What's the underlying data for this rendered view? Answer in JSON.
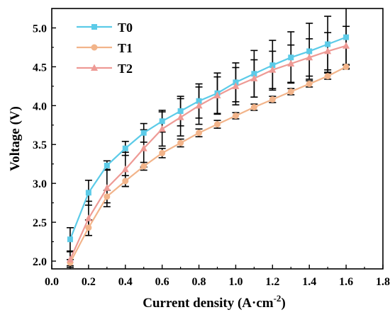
{
  "chart_data": {
    "type": "line",
    "title": "",
    "xlabel": "Current density (A·cm",
    "xlabel_sup": "-2",
    "xlabel_tail": ")",
    "ylabel": "Voltage (V)",
    "xlim": [
      0.0,
      1.8
    ],
    "ylim": [
      1.9,
      5.25
    ],
    "xticks": [
      "0.0",
      "0.2",
      "0.4",
      "0.6",
      "0.8",
      "1.0",
      "1.2",
      "1.4",
      "1.6",
      "1.8"
    ],
    "yticks": [
      "2.0",
      "2.5",
      "3.0",
      "3.5",
      "4.0",
      "4.5",
      "5.0"
    ],
    "grid": false,
    "legend_position": "top-left",
    "x": [
      0.1,
      0.2,
      0.3,
      0.4,
      0.5,
      0.6,
      0.7,
      0.8,
      0.9,
      1.0,
      1.1,
      1.2,
      1.3,
      1.4,
      1.5,
      1.6
    ],
    "series": [
      {
        "name": "T0",
        "color": "#5ccbe8",
        "marker": "square",
        "values": [
          2.28,
          2.88,
          3.23,
          3.45,
          3.65,
          3.8,
          3.93,
          4.06,
          4.16,
          4.3,
          4.41,
          4.52,
          4.62,
          4.7,
          4.79,
          4.88
        ],
        "errors": [
          0.15,
          0.16,
          0.06,
          0.09,
          0.12,
          0.14,
          0.19,
          0.22,
          0.26,
          0.25,
          0.3,
          0.32,
          0.33,
          0.36,
          0.36,
          0.4
        ]
      },
      {
        "name": "T1",
        "color": "#f2b48a",
        "marker": "circle",
        "values": [
          1.98,
          2.43,
          2.83,
          3.03,
          3.22,
          3.39,
          3.52,
          3.65,
          3.76,
          3.87,
          3.98,
          4.08,
          4.18,
          4.28,
          4.38,
          4.5
        ],
        "errors": [
          0.04,
          0.1,
          0.08,
          0.07,
          0.05,
          0.06,
          0.05,
          0.05,
          0.05,
          0.04,
          0.04,
          0.04,
          0.04,
          0.04,
          0.04,
          0.03
        ]
      },
      {
        "name": "T2",
        "color": "#ee9a95",
        "marker": "triangle",
        "values": [
          2.02,
          2.55,
          2.94,
          3.18,
          3.45,
          3.7,
          3.85,
          4.0,
          4.13,
          4.25,
          4.35,
          4.46,
          4.54,
          4.62,
          4.7,
          4.77
        ],
        "errors": [
          0.1,
          0.22,
          0.24,
          0.22,
          0.24,
          0.22,
          0.24,
          0.24,
          0.24,
          0.24,
          0.24,
          0.24,
          0.24,
          0.24,
          0.24,
          0.25
        ]
      }
    ]
  }
}
